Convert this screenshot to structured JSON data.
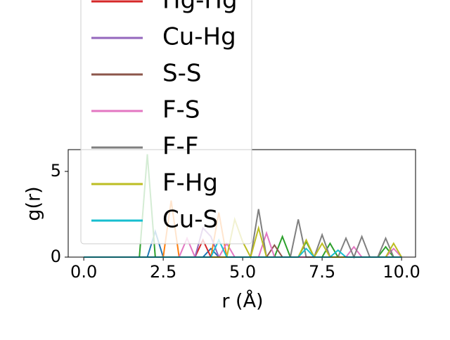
{
  "chart_data": {
    "type": "line",
    "x_label": "r (Å)",
    "y_label": "g(r)",
    "x": [
      0,
      0.25,
      0.5,
      0.75,
      1,
      1.25,
      1.5,
      1.75,
      2,
      2.25,
      2.5,
      2.75,
      3,
      3.25,
      3.5,
      3.75,
      4,
      4.25,
      4.5,
      4.75,
      5,
      5.25,
      5.5,
      5.75,
      6,
      6.25,
      6.5,
      6.75,
      7,
      7.25,
      7.5,
      7.75,
      8,
      8.25,
      8.5,
      8.75,
      9,
      9.25,
      9.5,
      9.75,
      10
    ],
    "series": [
      {
        "color": "#1f77b4",
        "values": [
          0,
          0,
          0,
          0,
          0,
          0,
          0,
          0,
          0,
          1.5,
          0,
          0,
          0,
          0,
          0,
          0,
          0.5,
          0,
          0,
          0,
          0,
          0,
          0,
          0,
          0,
          0,
          0,
          0,
          0,
          0,
          0,
          0,
          0,
          0,
          0,
          0,
          0,
          0,
          0,
          0,
          0
        ]
      },
      {
        "color": "#ff7f0e",
        "values": [
          0,
          0,
          0,
          0,
          0,
          0,
          0,
          0,
          0,
          0,
          0,
          3.3,
          0,
          0,
          0,
          0,
          0,
          2.6,
          0,
          0,
          0,
          0,
          0,
          0,
          0,
          0,
          0,
          0,
          0,
          0,
          0,
          0,
          0,
          0,
          0,
          0,
          0,
          0,
          0,
          0,
          0
        ]
      },
      {
        "color": "#2ca02c",
        "values": [
          0,
          0,
          0,
          0,
          0,
          0,
          0,
          0,
          6.0,
          0,
          0,
          0,
          0,
          0,
          0,
          0,
          0,
          0,
          0,
          0,
          0,
          0,
          0,
          0,
          0,
          1.2,
          0,
          0,
          0.9,
          0,
          0,
          0.8,
          0,
          0,
          0,
          0,
          0,
          0,
          0.6,
          0,
          0
        ]
      },
      {
        "name": "Hg-Hg",
        "color": "#d62728",
        "values": [
          0,
          0,
          0,
          0,
          0,
          0,
          0,
          0,
          0,
          0,
          0,
          0,
          0,
          0,
          0,
          1.0,
          0,
          0,
          0,
          0,
          0,
          0,
          0,
          0,
          0,
          0,
          0,
          0,
          0,
          0,
          0,
          0,
          0,
          0,
          0,
          0,
          0,
          0,
          0,
          0,
          0
        ]
      },
      {
        "name": "Cu-Hg",
        "color": "#9467bd",
        "values": [
          0,
          0,
          0,
          0,
          0,
          0,
          0,
          0,
          0,
          0,
          0,
          0,
          0,
          0,
          0,
          1.7,
          1.2,
          0,
          0,
          0,
          0,
          0,
          0,
          0,
          0,
          0,
          0,
          0,
          0,
          0,
          0,
          0,
          0,
          0,
          0,
          0,
          0,
          0,
          0,
          0,
          0
        ]
      },
      {
        "name": "S-S",
        "color": "#8c564b",
        "values": [
          0,
          0,
          0,
          0,
          0,
          0,
          0,
          0,
          0,
          0,
          0,
          0,
          0,
          0,
          0,
          0,
          0,
          0,
          0,
          0,
          0,
          0,
          0,
          0,
          0.7,
          0,
          0,
          0,
          0,
          0,
          0,
          0,
          0,
          0,
          0,
          0,
          0,
          0,
          0,
          0,
          0
        ]
      },
      {
        "name": "F-S",
        "color": "#e377c2",
        "values": [
          0,
          0,
          0,
          0,
          0,
          0,
          0,
          0,
          0,
          0,
          0,
          0,
          0,
          1.1,
          0,
          0,
          0,
          0,
          0.8,
          0,
          0,
          0,
          0,
          1.4,
          0,
          0,
          0,
          0,
          0,
          0,
          0,
          0,
          0,
          0,
          0.6,
          0,
          0,
          0,
          0,
          0.5,
          0
        ]
      },
      {
        "name": "F-F",
        "color": "#7f7f7f",
        "values": [
          0,
          0,
          0,
          0,
          0,
          0,
          0,
          0,
          0,
          0,
          0,
          0,
          0,
          0,
          0,
          0,
          0,
          0,
          0,
          0,
          0,
          0,
          2.8,
          0,
          0,
          0,
          0,
          2.2,
          0,
          0,
          1.3,
          0,
          0,
          1.1,
          0,
          1.2,
          0,
          0,
          1.1,
          0,
          0
        ]
      },
      {
        "name": "F-Hg",
        "color": "#bcbd22",
        "values": [
          0,
          0,
          0,
          0,
          0,
          0,
          0,
          0,
          0,
          0,
          0,
          0,
          0,
          0,
          0,
          0,
          0,
          0,
          0,
          2.2,
          0.9,
          0,
          1.7,
          0,
          0,
          0,
          0,
          0,
          1.0,
          0,
          0.8,
          0,
          0,
          0,
          0,
          0,
          0,
          0,
          0,
          0.8,
          0
        ]
      },
      {
        "name": "Cu-S",
        "color": "#17becf",
        "values": [
          0,
          0,
          0,
          0,
          0,
          0,
          0,
          0,
          0,
          0,
          0,
          0,
          0,
          0,
          0,
          0,
          0,
          1.0,
          0,
          0,
          0,
          0,
          0,
          0,
          0,
          0,
          0,
          0,
          0.5,
          0,
          0,
          0,
          0.4,
          0,
          0,
          0,
          0,
          0,
          0,
          0,
          0
        ]
      }
    ],
    "xlim": [
      -0.49,
      10.44
    ],
    "ylim": [
      0,
      6.27
    ],
    "xticks": [
      {
        "value": 0,
        "label": "0.0"
      },
      {
        "value": 2.5,
        "label": "2.5"
      },
      {
        "value": 5,
        "label": "5.0"
      },
      {
        "value": 7.5,
        "label": "7.5"
      },
      {
        "value": 10,
        "label": "10.0"
      }
    ],
    "yticks": [
      0,
      5
    ],
    "legend": "upper left"
  }
}
